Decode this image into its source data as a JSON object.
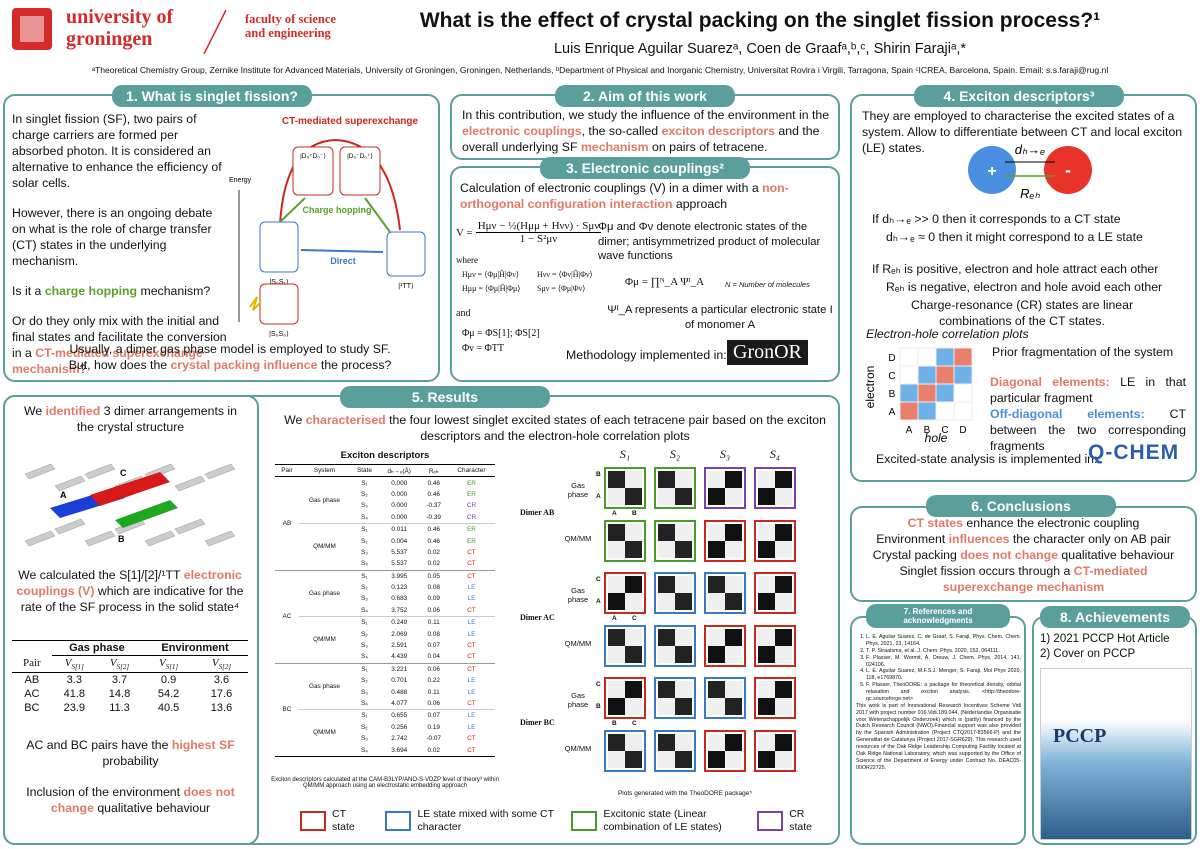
{
  "header": {
    "university": [
      "university of",
      "groningen"
    ],
    "faculty": [
      "faculty of science",
      "and engineering"
    ],
    "title": "What is the effect of crystal packing on the singlet fission process?¹",
    "authors": "Luis Enrique Aguilar Suarezᵃ,  Coen de Graafᵃ,ᵇ,ᶜ, Shirin Farajiᵃ,*",
    "affiliations": "ᵃTheoretical Chemistry Group, Zernike Institute for Advanced Materials, University of Groningen, Groningen, Netherlands, ᵇDepartment of Physical and Inorganic Chemistry, Universitat Rovira i Virgili, Tarragona, Spain ᶜICREA, Barcelona, Spain. Email: s.s.faraji@rug.nl"
  },
  "s1": {
    "heading": "1. What is singlet fission?",
    "body": [
      [
        {
          "text": "In singlet fission (SF), two pairs of charge carriers are formed per absorbed photon. It is considered an alternative to enhance the efficiency of solar cells."
        }
      ],
      [
        {
          "text": "However, there is an ongoing debate on what is the role of charge transfer (CT) states in the underlying mechanism."
        }
      ],
      [
        {
          "text": "Is it a "
        },
        {
          "text": "charge hopping",
          "style": "green"
        },
        {
          "text": " mechanism?"
        }
      ],
      [
        {
          "text": "Or do they only mix with the initial and final states and facilitate the conversion in a "
        },
        {
          "text": "CT-mediated superexchange mechanism",
          "style": "red"
        },
        {
          "text": "?"
        }
      ]
    ],
    "closing": [
      {
        "text": "Usually, a dimer gas phase model is employed to study SF. But, how does the "
      },
      {
        "text": "crystal packing influence",
        "style": "red"
      },
      {
        "text": " the process?"
      }
    ],
    "diagram": {
      "superexchange": "CT-mediated superexchange",
      "hopping": "Charge hopping",
      "direct": "Direct",
      "energy": "Energy",
      "states": [
        "|D₀⁺D₀⁻⟩",
        "|D₀⁻D₀⁺⟩",
        "|S₀S₁⟩",
        "|¹TT⟩",
        "|S₀S₀⟩"
      ]
    }
  },
  "s2": {
    "heading": "2. Aim of this work",
    "body": [
      {
        "text": "In this contribution, we study the influence of the environment in the "
      },
      {
        "text": "electronic couplings",
        "style": "red"
      },
      {
        "text": ", the so-called "
      },
      {
        "text": "exciton descriptors",
        "style": "red"
      },
      {
        "text": " and the overall underlying SF "
      },
      {
        "text": "mechanism",
        "style": "red"
      },
      {
        "text": " on pairs of tetracene."
      }
    ]
  },
  "s3": {
    "heading": "3. Electronic couplings²",
    "intro": [
      {
        "text": "Calculation of electronic couplings (V) in a dimer with a "
      },
      {
        "text": "non-orthogonal configuration interaction",
        "style": "red"
      },
      {
        "text": " approach"
      }
    ],
    "formula": {
      "lhs": "V =",
      "numerator": "Hμν − ½(Hμμ + Hνν) · Sμν",
      "denominator": "1 − S²μν"
    },
    "where": "where",
    "definitions": [
      "Hμν = ⟨Φμ|Ĥ|Φν⟩",
      "Hνν = ⟨Φν|Ĥ|Φν⟩",
      "Hμμ = ⟨Φμ|Ĥ|Φμ⟩",
      "Sμν = ⟨Φμ|Φν⟩"
    ],
    "and": "and",
    "states": [
      "Φμ = ΦS[1]; ΦS[2]",
      "Φν = ΦTT"
    ],
    "description": "Φμ and Φν denote electronic states of the dimer; antisymmetrized product of molecular wave functions",
    "product": "Φμ = ∏ᴺ_A Ψᴵ_A",
    "product_note": "N = Number of molecules",
    "monomer": "Ψᴵ_A represents a particular electronic state I of monomer A",
    "methodology": "Methodology implemented in:",
    "logo": "GronOR"
  },
  "s4": {
    "heading": "4. Exciton descriptors³",
    "intro": "They are employed to characterise the excited states of a system. Allow to differentiate between CT and local exciton (LE) states.",
    "diagram": {
      "plus": "+",
      "minus": "-",
      "d": "dₕ→ₑ",
      "r": "Rₑₕ"
    },
    "d_rules": [
      "If dₕ→ₑ >> 0 then it corresponds to a CT state",
      "dₕ→ₑ ≈ 0 then it might correspond to a LE state"
    ],
    "r_rules": [
      "If Rₑₕ is positive, electron and hole attract each other",
      "Rₑₕ is negative, electron and hole avoid each other",
      "Charge-resonance (CR) states are linear combinations of the CT states."
    ],
    "plots_title": "Electron-hole correlation plots",
    "plot_axes": {
      "y": "electron",
      "x": "hole",
      "letters": [
        "A",
        "B",
        "C",
        "D"
      ]
    },
    "fragmentation": "Prior fragmentation of the system",
    "diagonal": [
      {
        "text": "Diagonal elements:",
        "style": "red"
      },
      {
        "text": " LE in that particular fragment"
      }
    ],
    "off_diagonal": [
      {
        "text": "Off-diagonal elements:",
        "style": "blue"
      },
      {
        "text": " CT between the two corresponding fragments"
      }
    ],
    "analysis": "Excited-state analysis is implemented in:",
    "logo": "Q-CHEM"
  },
  "s5": {
    "heading": "5. Results",
    "identified": [
      {
        "text": "We "
      },
      {
        "text": "identified",
        "style": "red"
      },
      {
        "text": " 3 dimer arrangements in the crystal structure"
      }
    ],
    "crystal_labels": [
      "A",
      "B",
      "C"
    ],
    "calculated": [
      {
        "text": "We calculated the S[1]/[2]/¹TT "
      },
      {
        "text": "electronic couplings (V)",
        "style": "red"
      },
      {
        "text": " which are indicative for the rate of the SF process in the solid state⁴"
      }
    ],
    "coupling_table": {
      "groups": [
        "Gas phase",
        "Environment"
      ],
      "headers": [
        {
          "main": "Pair"
        },
        {
          "main": "V",
          "sub": "S[1]"
        },
        {
          "main": "V",
          "sub": "S[2]"
        },
        {
          "main": "V",
          "sub": "S[1]"
        },
        {
          "main": "V",
          "sub": "S[2]"
        }
      ],
      "rows": [
        [
          "AB",
          "3.3",
          "3.7",
          "0.9",
          "3.6"
        ],
        [
          "AC",
          "41.8",
          "14.8",
          "54.2",
          "17.6"
        ],
        [
          "BC",
          "23.9",
          "11.3",
          "40.5",
          "13.6"
        ]
      ]
    },
    "highest": [
      {
        "text": "AC and BC pairs have the "
      },
      {
        "text": "highest SF",
        "style": "red"
      },
      {
        "text": " probability"
      }
    ],
    "inclusion": [
      {
        "text": "Inclusion of the environment "
      },
      {
        "text": "does not change",
        "style": "red"
      },
      {
        "text": " qualitative behaviour"
      }
    ],
    "characterised": [
      {
        "text": "We "
      },
      {
        "text": "characterised",
        "style": "red"
      },
      {
        "text": " the four lowest singlet excited states of each tetracene pair based on the exciton descriptors and the electron-hole correlation plots"
      }
    ],
    "exciton_table": {
      "title": "Exciton descriptors",
      "headers": [
        "Pair",
        "System",
        "State",
        "dₕ→ₑ(Å)",
        "Rₑₕ",
        "Character"
      ],
      "character_colors": {
        "ER": "#4a9a2a",
        "CR": "#7a3fb0",
        "CT": "#c8281e",
        "LE": "#3a78c8"
      },
      "groups": [
        {
          "pair": "AB",
          "systems": [
            {
              "name": "Gas phase",
              "states": [
                [
                  "S₁",
                  "0.000",
                  "0.46",
                  "ER"
                ],
                [
                  "S₂",
                  "0.000",
                  "0.46",
                  "ER"
                ],
                [
                  "S₃",
                  "0.000",
                  "-0.37",
                  "CR"
                ],
                [
                  "S₄",
                  "0.000",
                  "-0.39",
                  "CR"
                ]
              ]
            },
            {
              "name": "QM/MM",
              "states": [
                [
                  "S₁",
                  "0.011",
                  "0.46",
                  "ER"
                ],
                [
                  "S₂",
                  "0.004",
                  "0.46",
                  "ER"
                ],
                [
                  "S₃",
                  "5.537",
                  "0.02",
                  "CT"
                ],
                [
                  "S₄",
                  "5.537",
                  "0.02",
                  "CT"
                ]
              ]
            }
          ]
        },
        {
          "pair": "AC",
          "systems": [
            {
              "name": "Gas phase",
              "states": [
                [
                  "S₁",
                  "3.995",
                  "0.05",
                  "CT"
                ],
                [
                  "S₂",
                  "0.123",
                  "0.08",
                  "LE"
                ],
                [
                  "S₃",
                  "0.683",
                  "0.09",
                  "LE"
                ],
                [
                  "S₄",
                  "3.752",
                  "0.06",
                  "CT"
                ]
              ]
            },
            {
              "name": "QM/MM",
              "states": [
                [
                  "S₁",
                  "0.249",
                  "0.11",
                  "LE"
                ],
                [
                  "S₂",
                  "2.069",
                  "0.08",
                  "LE"
                ],
                [
                  "S₃",
                  "2.591",
                  "0.07",
                  "CT"
                ],
                [
                  "S₄",
                  "4.439",
                  "0.04",
                  "CT"
                ]
              ]
            }
          ]
        },
        {
          "pair": "BC",
          "systems": [
            {
              "name": "Gas phase",
              "states": [
                [
                  "S₁",
                  "3.221",
                  "0.06",
                  "CT"
                ],
                [
                  "S₂",
                  "0.701",
                  "0.22",
                  "LE"
                ],
                [
                  "S₃",
                  "0.488",
                  "0.11",
                  "LE"
                ],
                [
                  "S₄",
                  "4.077",
                  "0.06",
                  "CT"
                ]
              ]
            },
            {
              "name": "QM/MM",
              "states": [
                [
                  "S₁",
                  "0.655",
                  "0.07",
                  "LE"
                ],
                [
                  "S₂",
                  "0.256",
                  "0.19",
                  "LE"
                ],
                [
                  "S₃",
                  "2.742",
                  "-0.07",
                  "CT"
                ],
                [
                  "S₄",
                  "3.694",
                  "0.02",
                  "CT"
                ]
              ]
            }
          ]
        }
      ],
      "footnote": "Exciton descriptors calculated at the CAM-B3LYP/ANO-S-VDZP level of theory³ within QM/MM approach using an electrostatic embedding approach"
    },
    "heatmaps": {
      "columns": [
        "S₁",
        "S₂",
        "S₃",
        "S₄"
      ],
      "row_labels": [
        "Gas phase",
        "QM/MM"
      ],
      "group_labels": [
        "Dimer AB",
        "Dimer AC",
        "Dimer BC"
      ],
      "axis_letters": [
        [
          "A",
          "B"
        ],
        [
          "A",
          "C"
        ],
        [
          "B",
          "C"
        ]
      ],
      "caption": "Plots generated with the TheoDORE package⁵"
    },
    "legend": [
      {
        "label": "CT state",
        "color": "#c8281e"
      },
      {
        "label": "LE state mixed with some CT character",
        "color": "#3a78c8"
      },
      {
        "label": "Excitonic state (Linear combination of LE states)",
        "color": "#4a9a2a"
      },
      {
        "label": "CR state",
        "color": "#7a3fb0"
      }
    ]
  },
  "s6": {
    "heading": "6. Conclusions",
    "lines": [
      [
        {
          "text": "CT states",
          "style": "red"
        },
        {
          "text": " enhance the electronic coupling"
        }
      ],
      [
        {
          "text": "Environment "
        },
        {
          "text": "influences",
          "style": "red"
        },
        {
          "text": " the character only on AB pair"
        }
      ],
      [
        {
          "text": "Crystal packing "
        },
        {
          "text": "does not change",
          "style": "red"
        },
        {
          "text": " qualitative behaviour"
        }
      ],
      [
        {
          "text": "Singlet fission occurs through a "
        },
        {
          "text": "CT-mediated superexchange mechanism",
          "style": "red"
        }
      ]
    ]
  },
  "s7": {
    "heading": "7. References and acknowledgments",
    "references": [
      "L. E. Aguilar Suarez, C. de Graaf, S. Faraji, Phys. Chem. Chem. Phys. 2021, 23, 14164.",
      "T. P. Straatsma, et al. J. Chem. Phys. 2020, 152, 064111.",
      "F. Plasser, M. Wormit, A. Dreuw, J. Chem. Phys. 2014, 141, 024106.",
      "L. E. Aguilar Suarez, M.F.S.J. Menger, S. Faraji, Mol Phys 2020, 118, e1769870.",
      "F. Plasser, TheoDORE: a package for theoretical density, orbital relaxation and exciton analysis. <http://theodore-qc.sourceforge.net>"
    ],
    "acknowledgments": "This work is part of Innovational Research Incentives Scheme Vidi 2017 with project number 016.Vidi.189.044, (Nederlandse Organisatie voor Wetenschappelijk Onderzoek) which is (partly) financed by the Dutch Research Council (NWO).Financial support was also provided by the Spanish Administration (Project CTQ2017-83566-P) and the Generalitat de Catalunya (Project 2017-SGR629). This research used resources of the Oak Ridge Leadership Computing Facility located at Oak Ridge National Laboratory, which was supported by the Office of Science of the Department of Energy under Contract No. DEAC05-00OR22725."
  },
  "s8": {
    "heading": "8. Achievements",
    "items": [
      "1) 2021 PCCP Hot Article",
      "2) Cover on PCCP"
    ],
    "cover": "PCCP"
  }
}
